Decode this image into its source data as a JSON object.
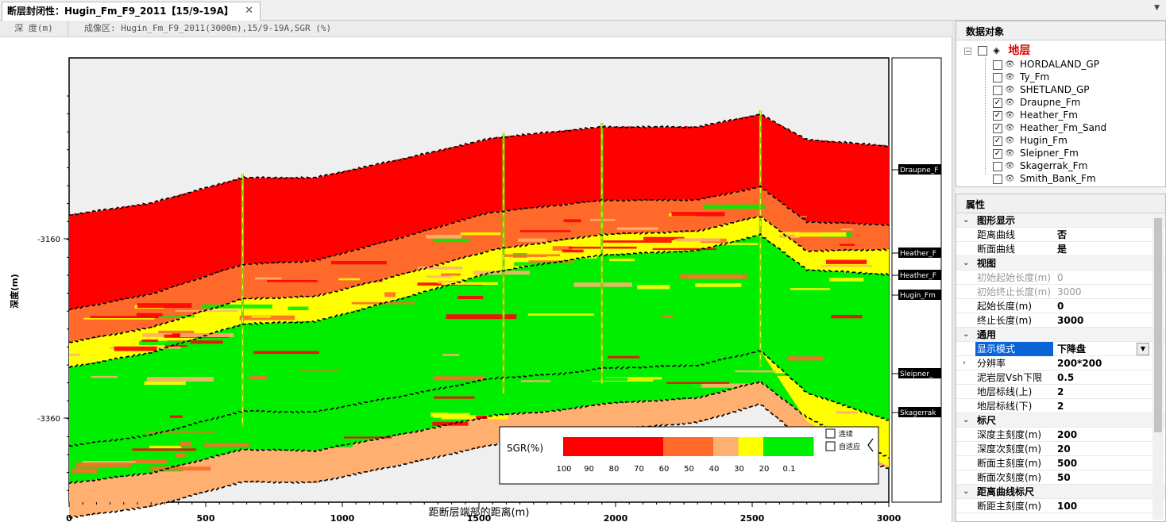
{
  "tab": {
    "title": "断层封闭性：Hugin_Fm_F9_2011【15/9-19A】",
    "close": "✕"
  },
  "subbar": {
    "depth_tab": "深 度(m)",
    "image_info": "成像区: Hugin_Fm_F9_2011(3000m),15/9-19A,SGR (%)"
  },
  "chart_data": {
    "type": "heatmap",
    "title": "",
    "xlabel": "距断层端部的距离(m)",
    "ylabel": "深度(m)",
    "xlim": [
      0,
      3000
    ],
    "x_ticks": [
      "0",
      "500",
      "1000",
      "1500",
      "2000",
      "2500",
      "3000"
    ],
    "y_ticks": [
      "-3160",
      "-3360"
    ],
    "layers_top_to_bottom": [
      "Draupne_Fm",
      "Heather_Fm",
      "Heather_Fm_Sand",
      "Hugin_Fm",
      "Sleipner_Fm",
      "Skagerrak_Fm"
    ],
    "horizon_labels": [
      "Draupne_F",
      "Heather_F",
      "Heather_F",
      "Hugin_Fm",
      "Sleipner_",
      "Skagerrak"
    ],
    "well_x": [
      635,
      1590,
      1950,
      2530
    ],
    "legend": {
      "title": "SGR(%)",
      "ticks": [
        "100",
        "90",
        "80",
        "70",
        "60",
        "50",
        "40",
        "30",
        "20",
        "0.1"
      ],
      "colors": [
        "#ff0000",
        "#ff0000",
        "#ff0000",
        "#ff0000",
        "#ff6a2a",
        "#ff6a2a",
        "#ffb070",
        "#ffff00",
        "#00ee00",
        "#00ee00"
      ],
      "checkboxes": [
        "连续",
        "自适应"
      ]
    },
    "grid": false
  },
  "data_objects": {
    "header": "数据对象",
    "root": "地层",
    "items": [
      {
        "label": "HORDALAND_GP",
        "checked": false
      },
      {
        "label": "Ty_Fm",
        "checked": false
      },
      {
        "label": "SHETLAND_GP",
        "checked": false
      },
      {
        "label": "Draupne_Fm",
        "checked": true
      },
      {
        "label": "Heather_Fm",
        "checked": true
      },
      {
        "label": "Heather_Fm_Sand",
        "checked": true
      },
      {
        "label": "Hugin_Fm",
        "checked": true
      },
      {
        "label": "Sleipner_Fm",
        "checked": true
      },
      {
        "label": "Skagerrak_Fm",
        "checked": false
      },
      {
        "label": "Smith_Bank_Fm",
        "checked": false
      }
    ]
  },
  "properties": {
    "header": "属性",
    "rows": [
      {
        "type": "category",
        "name": "图形显示"
      },
      {
        "name": "距离曲线",
        "value": "否"
      },
      {
        "name": "断面曲线",
        "value": "是"
      },
      {
        "type": "category",
        "name": "视图"
      },
      {
        "name": "初始起始长度(m)",
        "value": "0",
        "disabled": true
      },
      {
        "name": "初始终止长度(m)",
        "value": "3000",
        "disabled": true
      },
      {
        "name": "起始长度(m)",
        "value": "0"
      },
      {
        "name": "终止长度(m)",
        "value": "3000"
      },
      {
        "type": "category",
        "name": "通用"
      },
      {
        "name": "显示模式",
        "value": "下降盘",
        "selected": true
      },
      {
        "name": "分辨率",
        "value": "200*200",
        "expandable": true
      },
      {
        "name": "泥岩层Vsh下限",
        "value": "0.5"
      },
      {
        "name": "地层标线(上)",
        "value": "2"
      },
      {
        "name": "地层标线(下)",
        "value": "2"
      },
      {
        "type": "category",
        "name": "标尺"
      },
      {
        "name": "深度主刻度(m)",
        "value": "200"
      },
      {
        "name": "深度次刻度(m)",
        "value": "20"
      },
      {
        "name": "断面主刻度(m)",
        "value": "500"
      },
      {
        "name": "断面次刻度(m)",
        "value": "50"
      },
      {
        "type": "category",
        "name": "距离曲线标尺"
      },
      {
        "name": "断距主刻度(m)",
        "value": "100"
      }
    ]
  }
}
